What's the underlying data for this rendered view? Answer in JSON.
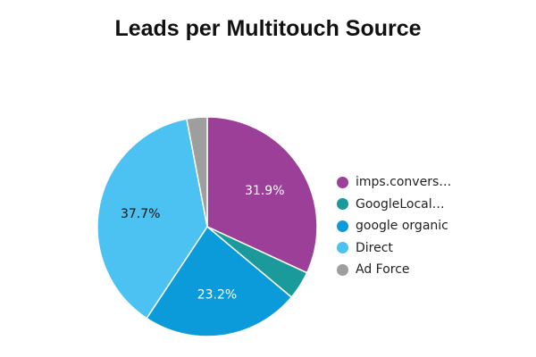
{
  "chart_data": {
    "type": "pie",
    "title": "Leads per Multitouch Source",
    "slices": [
      {
        "label": "imps.convers…",
        "value": 31.9,
        "data_label": "31.9%",
        "color": "#9c3f98",
        "label_color": "#ffffff"
      },
      {
        "label": "GoogleLocal…",
        "value": 4.2,
        "data_label": "",
        "color": "#1a9a9a",
        "label_color": "#ffffff"
      },
      {
        "label": "google organic",
        "value": 23.2,
        "data_label": "23.2%",
        "color": "#0b9bdb",
        "label_color": "#ffffff"
      },
      {
        "label": "Direct",
        "value": 37.7,
        "data_label": "37.7%",
        "color": "#4cc2f2",
        "label_color": "#111111"
      },
      {
        "label": "Ad Force",
        "value": 3.0,
        "data_label": "",
        "color": "#9e9e9e",
        "label_color": "#ffffff"
      }
    ],
    "legend_position": "right",
    "start": "top",
    "direction": "clockwise"
  }
}
